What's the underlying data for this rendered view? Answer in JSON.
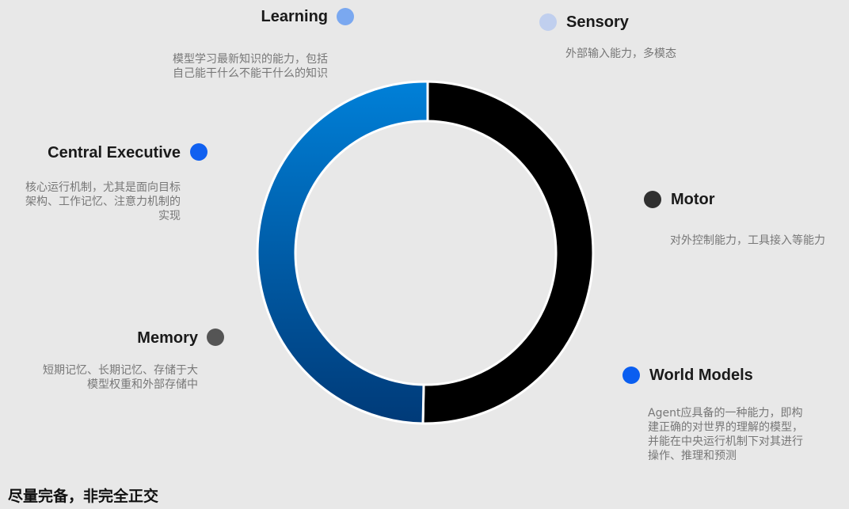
{
  "colors": {
    "background": "#e8e8e8",
    "ring_black": "#000000",
    "ring_blue_top": "#0080d8",
    "ring_blue_bottom": "#003a78"
  },
  "nodes": [
    {
      "id": "learning",
      "label": "Learning",
      "dot_color": "#7aa8f0",
      "desc": [
        "模型学习最新知识的能力，包括",
        "自己能干什么不能干什么的知识"
      ]
    },
    {
      "id": "sensory",
      "label": "Sensory",
      "dot_color": "#c0cfee",
      "desc": [
        "外部输入能力，多模态"
      ]
    },
    {
      "id": "central-executive",
      "label": "Central Executive",
      "dot_color": "#1060f0",
      "desc": [
        "核心运行机制，尤其是面向目标",
        "架构、工作记忆、注意力机制的",
        "实现"
      ]
    },
    {
      "id": "motor",
      "label": "Motor",
      "dot_color": "#303030",
      "desc": [
        "对外控制能力，工具接入等能力"
      ]
    },
    {
      "id": "memory",
      "label": "Memory",
      "dot_color": "#555555",
      "desc": [
        "短期记忆、长期记忆、存储于大",
        "模型权重和外部存储中"
      ]
    },
    {
      "id": "world-models",
      "label": "World Models",
      "dot_color": "#0a5ef0",
      "desc": [
        "Agent应具备的一种能力，即构",
        "建正确的对世界的理解的模型，",
        "并能在中央运行机制下对其进行",
        "操作、推理和预测"
      ]
    }
  ],
  "footer": "尽量完备，非完全正交"
}
